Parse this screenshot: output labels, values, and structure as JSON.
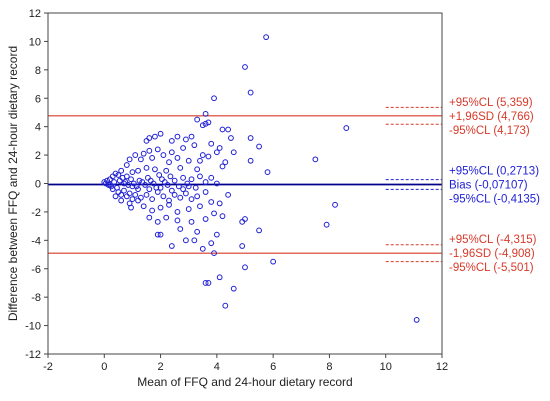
{
  "chart_data": {
    "type": "scatter",
    "title": "",
    "xlabel": "Mean of FFQ and 24-hour dietary record",
    "ylabel": "Difference between FFQ and 24-hour dietary record",
    "xlim": [
      -2,
      12
    ],
    "ylim": [
      -12,
      12
    ],
    "xticks": [
      "-2",
      "0",
      "2",
      "4",
      "6",
      "8",
      "10",
      "12"
    ],
    "yticks": [
      "12",
      "10",
      "8",
      "6",
      "4",
      "2",
      "0",
      "-2",
      "-4",
      "-6",
      "-8",
      "-10",
      "-12"
    ],
    "grid": false,
    "colors": {
      "points": "#1f1fd6",
      "limits": "#d83a2a",
      "bias": "#00008b",
      "text_red": "#d83a2a",
      "text_blue": "#1f1fd6"
    },
    "reference_lines": [
      {
        "label": "+95%CL (5,359)",
        "y": 5.359,
        "style": "dashed",
        "color": "red",
        "group": "upper"
      },
      {
        "label": "+1,96SD (4,766)",
        "y": 4.766,
        "style": "solid",
        "color": "red",
        "group": "upper"
      },
      {
        "label": "-95%CL (4,173)",
        "y": 4.173,
        "style": "dashed",
        "color": "red",
        "group": "upper"
      },
      {
        "label": "+95%CL (0,2713)",
        "y": 0.2713,
        "style": "dashed",
        "color": "blue",
        "group": "bias"
      },
      {
        "label": "Bias (-0,07107)",
        "y": -0.07107,
        "style": "solid",
        "color": "navy",
        "group": "bias"
      },
      {
        "label": "-95%CL (-0,4135)",
        "y": -0.4135,
        "style": "dashed",
        "color": "blue",
        "group": "bias"
      },
      {
        "label": "+95%CL (-4,315)",
        "y": -4.315,
        "style": "dashed",
        "color": "red",
        "group": "lower"
      },
      {
        "label": "-1,96SD (-4,908)",
        "y": -4.908,
        "style": "solid",
        "color": "red",
        "group": "lower"
      },
      {
        "label": "-95%CL (-5,501)",
        "y": -5.501,
        "style": "dashed",
        "color": "red",
        "group": "lower"
      }
    ],
    "points": [
      [
        5.75,
        10.3
      ],
      [
        5.0,
        8.2
      ],
      [
        5.2,
        6.4
      ],
      [
        3.9,
        6.0
      ],
      [
        3.6,
        4.9
      ],
      [
        3.3,
        4.5
      ],
      [
        4.2,
        3.8
      ],
      [
        4.4,
        3.8
      ],
      [
        8.6,
        3.9
      ],
      [
        4.5,
        3.2
      ],
      [
        5.2,
        3.2
      ],
      [
        3.1,
        3.3
      ],
      [
        2.9,
        3.1
      ],
      [
        2.6,
        3.3
      ],
      [
        2.4,
        3.0
      ],
      [
        3.5,
        4.1
      ],
      [
        3.6,
        4.2
      ],
      [
        3.7,
        4.3
      ],
      [
        2.0,
        3.5
      ],
      [
        1.8,
        3.3
      ],
      [
        1.6,
        3.2
      ],
      [
        1.5,
        3.0
      ],
      [
        2.8,
        2.5
      ],
      [
        3.2,
        2.7
      ],
      [
        3.8,
        2.8
      ],
      [
        4.1,
        2.5
      ],
      [
        5.5,
        2.6
      ],
      [
        4.6,
        2.2
      ],
      [
        4.0,
        2.2
      ],
      [
        3.5,
        2.0
      ],
      [
        3.7,
        1.9
      ],
      [
        2.4,
        2.2
      ],
      [
        2.1,
        2.0
      ],
      [
        1.9,
        2.4
      ],
      [
        1.6,
        2.3
      ],
      [
        1.4,
        2.1
      ],
      [
        1.3,
        1.7
      ],
      [
        1.1,
        2.0
      ],
      [
        0.9,
        1.7
      ],
      [
        0.8,
        1.3
      ],
      [
        1.7,
        1.8
      ],
      [
        2.3,
        1.5
      ],
      [
        2.6,
        1.8
      ],
      [
        3.0,
        1.6
      ],
      [
        3.4,
        1.6
      ],
      [
        4.3,
        1.5
      ],
      [
        5.2,
        1.6
      ],
      [
        7.5,
        1.7
      ],
      [
        5.8,
        0.8
      ],
      [
        4.2,
        1.2
      ],
      [
        3.3,
        1.0
      ],
      [
        2.7,
        1.1
      ],
      [
        2.2,
        0.9
      ],
      [
        1.8,
        1.0
      ],
      [
        1.5,
        1.1
      ],
      [
        1.2,
        0.9
      ],
      [
        1.0,
        0.8
      ],
      [
        0.6,
        0.9
      ],
      [
        0.5,
        0.6
      ],
      [
        0.4,
        0.7
      ],
      [
        0.3,
        0.5
      ],
      [
        0.2,
        0.3
      ],
      [
        0.1,
        0.2
      ],
      [
        0.0,
        0.1
      ],
      [
        0.05,
        0.0
      ],
      [
        0.15,
        -0.1
      ],
      [
        0.25,
        -0.2
      ],
      [
        0.35,
        0.1
      ],
      [
        0.45,
        -0.3
      ],
      [
        0.55,
        0.2
      ],
      [
        0.65,
        0.4
      ],
      [
        0.75,
        0.1
      ],
      [
        0.85,
        -0.1
      ],
      [
        0.95,
        0.3
      ],
      [
        1.05,
        0.0
      ],
      [
        1.15,
        -0.2
      ],
      [
        1.25,
        0.2
      ],
      [
        1.35,
        0.1
      ],
      [
        1.45,
        -0.1
      ],
      [
        1.55,
        0.4
      ],
      [
        1.65,
        0.2
      ],
      [
        1.75,
        0.0
      ],
      [
        1.85,
        -0.3
      ],
      [
        1.95,
        0.6
      ],
      [
        2.05,
        0.3
      ],
      [
        2.15,
        0.1
      ],
      [
        2.25,
        -0.1
      ],
      [
        2.35,
        0.5
      ],
      [
        2.5,
        0.2
      ],
      [
        2.65,
        -0.2
      ],
      [
        2.8,
        0.4
      ],
      [
        2.95,
        0.0
      ],
      [
        3.1,
        0.3
      ],
      [
        3.25,
        -0.3
      ],
      [
        3.4,
        0.5
      ],
      [
        3.6,
        0.1
      ],
      [
        3.8,
        0.4
      ],
      [
        4.0,
        0.0
      ],
      [
        0.3,
        -0.4
      ],
      [
        0.5,
        -0.6
      ],
      [
        0.6,
        -0.8
      ],
      [
        0.7,
        -0.5
      ],
      [
        0.8,
        -0.9
      ],
      [
        0.9,
        -0.7
      ],
      [
        1.0,
        -1.1
      ],
      [
        1.1,
        -0.8
      ],
      [
        1.2,
        -1.2
      ],
      [
        0.4,
        -0.9
      ],
      [
        0.6,
        -1.2
      ],
      [
        0.9,
        -1.4
      ],
      [
        0.95,
        -1.7
      ],
      [
        1.3,
        -1.0
      ],
      [
        1.5,
        -0.8
      ],
      [
        1.7,
        -1.1
      ],
      [
        1.9,
        -0.6
      ],
      [
        2.1,
        -0.9
      ],
      [
        2.3,
        -1.2
      ],
      [
        2.5,
        -0.8
      ],
      [
        2.7,
        -1.0
      ],
      [
        2.9,
        -0.7
      ],
      [
        3.1,
        -1.1
      ],
      [
        3.3,
        -0.9
      ],
      [
        3.6,
        -0.6
      ],
      [
        3.8,
        -1.3
      ],
      [
        4.1,
        -1.4
      ],
      [
        4.4,
        -0.8
      ],
      [
        1.4,
        -1.6
      ],
      [
        1.7,
        -1.9
      ],
      [
        2.0,
        -1.7
      ],
      [
        2.3,
        -1.5
      ],
      [
        2.6,
        -2.0
      ],
      [
        3.0,
        -1.8
      ],
      [
        3.4,
        -1.6
      ],
      [
        3.9,
        -2.1
      ],
      [
        4.2,
        -2.3
      ],
      [
        1.6,
        -2.4
      ],
      [
        1.9,
        -2.7
      ],
      [
        2.2,
        -2.4
      ],
      [
        2.6,
        -2.6
      ],
      [
        3.1,
        -2.7
      ],
      [
        3.6,
        -2.5
      ],
      [
        2.0,
        -3.6
      ],
      [
        1.9,
        -3.6
      ],
      [
        2.7,
        -3.2
      ],
      [
        3.3,
        -3.4
      ],
      [
        4.0,
        -3.6
      ],
      [
        4.9,
        -2.7
      ],
      [
        5.0,
        -2.5
      ],
      [
        2.4,
        -4.4
      ],
      [
        2.9,
        -4.0
      ],
      [
        3.2,
        -4.0
      ],
      [
        3.5,
        -4.6
      ],
      [
        3.8,
        -4.2
      ],
      [
        3.9,
        -4.9
      ],
      [
        4.9,
        -4.4
      ],
      [
        5.5,
        -3.3
      ],
      [
        3.7,
        -7.0
      ],
      [
        3.6,
        -7.0
      ],
      [
        4.1,
        -6.6
      ],
      [
        4.6,
        -7.4
      ],
      [
        4.3,
        -8.6
      ],
      [
        5.0,
        -5.9
      ],
      [
        6.0,
        -5.5
      ],
      [
        7.9,
        -2.9
      ],
      [
        8.2,
        -1.5
      ],
      [
        11.1,
        -9.6
      ],
      [
        1.0,
        -0.2
      ],
      [
        1.2,
        -0.4
      ],
      [
        0.7,
        0.0
      ],
      [
        1.6,
        -0.4
      ],
      [
        2.0,
        -0.3
      ],
      [
        2.4,
        -0.5
      ],
      [
        2.8,
        -0.4
      ],
      [
        3.0,
        -0.2
      ],
      [
        0.2,
        -0.1
      ],
      [
        0.8,
        0.5
      ]
    ]
  }
}
